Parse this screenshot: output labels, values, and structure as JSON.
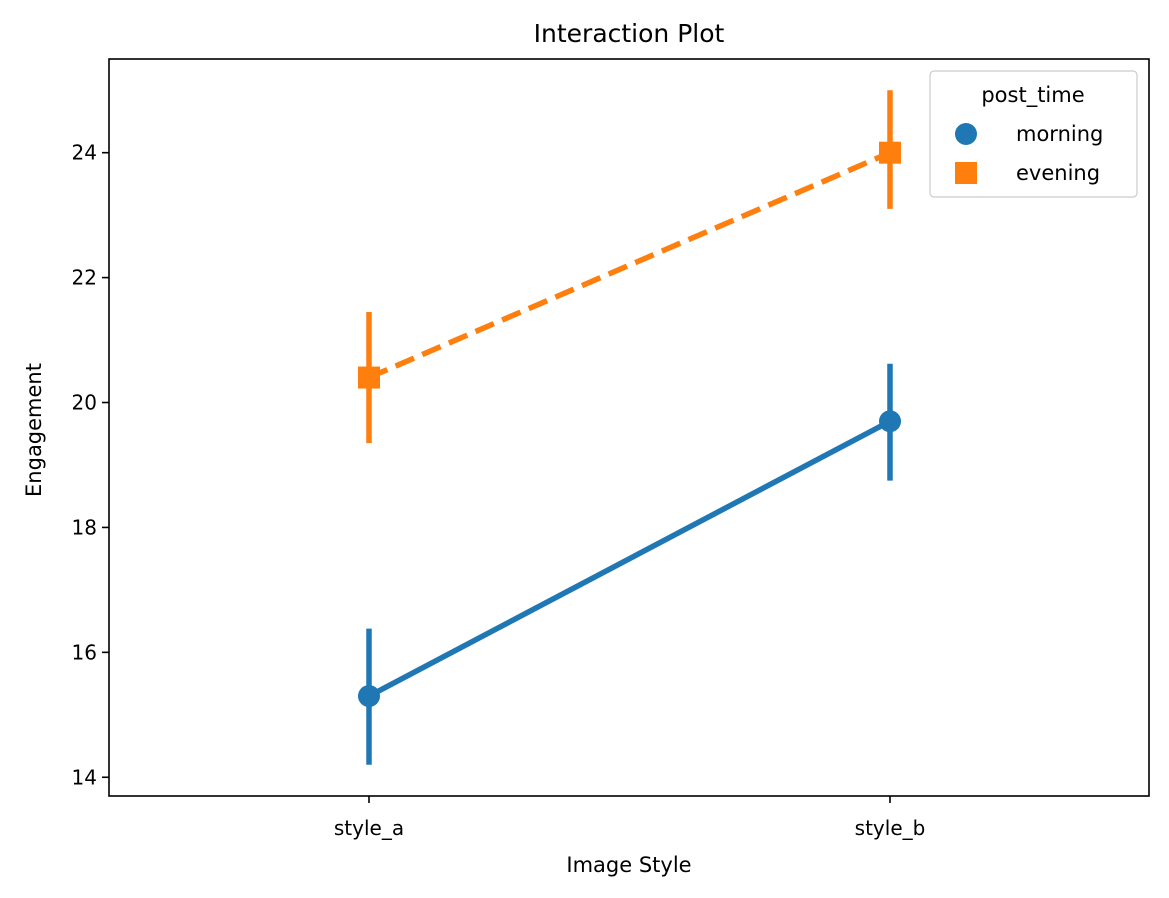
{
  "chart_data": {
    "type": "line",
    "title": "Interaction Plot",
    "xlabel": "Image Style",
    "ylabel": "Engagement",
    "categories": [
      "style_a",
      "style_b"
    ],
    "ylim": [
      13.7,
      25.5
    ],
    "yticks": [
      14,
      16,
      18,
      20,
      22,
      24
    ],
    "grid": false,
    "legend": {
      "title": "post_time",
      "placement": "top-right"
    },
    "series": [
      {
        "name": "morning",
        "color": "#1f77b4",
        "marker": "circle",
        "linestyle": "solid",
        "values": [
          15.3,
          19.7
        ],
        "ci_low": [
          14.2,
          18.75
        ],
        "ci_high": [
          16.38,
          20.62
        ]
      },
      {
        "name": "evening",
        "color": "#ff7f0e",
        "marker": "square",
        "linestyle": "dashed",
        "values": [
          20.4,
          24.0
        ],
        "ci_low": [
          19.35,
          23.1
        ],
        "ci_high": [
          21.45,
          25.0
        ]
      }
    ]
  }
}
